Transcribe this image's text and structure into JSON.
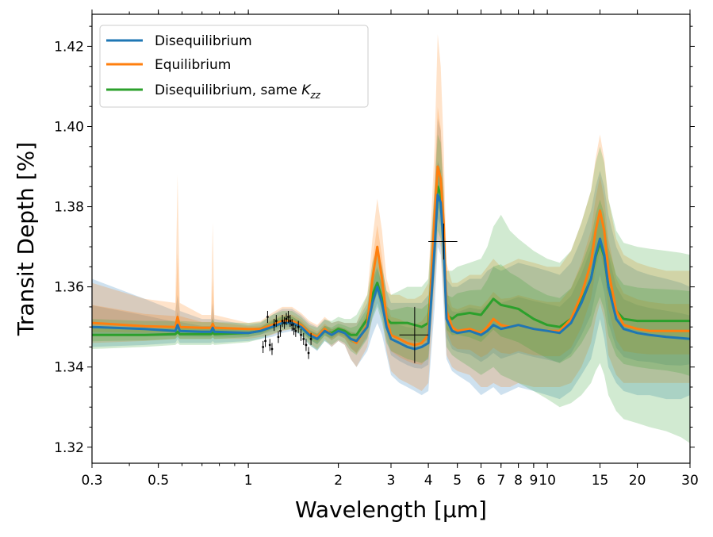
{
  "chart_data": {
    "type": "line",
    "title": "",
    "xlabel": "Wavelength [μm]",
    "ylabel": "Transit Depth [%]",
    "xscale": "log",
    "xlim": [
      0.3,
      30
    ],
    "ylim": [
      1.316,
      1.428
    ],
    "x_ticks": [
      {
        "value": 0.3,
        "label": "0.3"
      },
      {
        "value": 0.5,
        "label": "0.5"
      },
      {
        "value": 1,
        "label": "1"
      },
      {
        "value": 2,
        "label": "2"
      },
      {
        "value": 3,
        "label": "3"
      },
      {
        "value": 4,
        "label": "4"
      },
      {
        "value": 5,
        "label": "5"
      },
      {
        "value": 6,
        "label": "6"
      },
      {
        "value": 7,
        "label": "7"
      },
      {
        "value": 8,
        "label": "8"
      },
      {
        "value": 9,
        "label": "9"
      },
      {
        "value": 10,
        "label": "10"
      },
      {
        "value": 15,
        "label": "15"
      },
      {
        "value": 20,
        "label": "20"
      },
      {
        "value": 30,
        "label": "30"
      }
    ],
    "y_ticks": [
      {
        "value": 1.32,
        "label": "1.32"
      },
      {
        "value": 1.34,
        "label": "1.34"
      },
      {
        "value": 1.36,
        "label": "1.36"
      },
      {
        "value": 1.38,
        "label": "1.38"
      },
      {
        "value": 1.4,
        "label": "1.40"
      },
      {
        "value": 1.42,
        "label": "1.42"
      }
    ],
    "legend": {
      "placement": "top-left",
      "entries": [
        {
          "label": "Disequilibrium",
          "color": "#1f77b4"
        },
        {
          "label": "Equilibrium",
          "color": "#ff7f0e"
        },
        {
          "label_main": "Disequilibrium, same ",
          "label_symbol": "K",
          "label_sub": "zz",
          "color": "#2ca02c"
        }
      ]
    },
    "x": [
      0.3,
      0.45,
      0.57,
      0.58,
      0.59,
      0.7,
      0.75,
      0.76,
      0.77,
      1.0,
      1.1,
      1.2,
      1.3,
      1.4,
      1.5,
      1.6,
      1.7,
      1.8,
      1.9,
      2.0,
      2.1,
      2.2,
      2.3,
      2.5,
      2.6,
      2.7,
      2.8,
      2.9,
      3.0,
      3.2,
      3.4,
      3.6,
      3.8,
      4.0,
      4.2,
      4.3,
      4.4,
      4.5,
      4.6,
      4.8,
      5.0,
      5.5,
      6.0,
      6.3,
      6.6,
      7.0,
      7.5,
      8.0,
      9.0,
      10.0,
      11.0,
      12.0,
      13.0,
      14.0,
      14.5,
      15.0,
      15.5,
      16.0,
      17.0,
      18.0,
      20.0,
      22.0,
      25.0,
      28.0,
      30.0
    ],
    "series": [
      {
        "name": "Disequilibrium",
        "color": "#1f77b4",
        "values": [
          1.35,
          1.3495,
          1.349,
          1.3505,
          1.349,
          1.3488,
          1.3488,
          1.3498,
          1.3488,
          1.3485,
          1.349,
          1.35,
          1.351,
          1.351,
          1.35,
          1.348,
          1.347,
          1.349,
          1.348,
          1.349,
          1.3485,
          1.347,
          1.3465,
          1.35,
          1.356,
          1.36,
          1.356,
          1.35,
          1.347,
          1.346,
          1.345,
          1.3445,
          1.345,
          1.346,
          1.37,
          1.383,
          1.381,
          1.37,
          1.352,
          1.349,
          1.3485,
          1.349,
          1.348,
          1.349,
          1.3505,
          1.3495,
          1.35,
          1.3505,
          1.3495,
          1.349,
          1.3485,
          1.351,
          1.356,
          1.362,
          1.368,
          1.372,
          1.368,
          1.36,
          1.352,
          1.3495,
          1.3485,
          1.348,
          1.3475,
          1.3472,
          1.347
        ],
        "lower": [
          1.345,
          1.3455,
          1.346,
          1.347,
          1.346,
          1.346,
          1.346,
          1.3465,
          1.346,
          1.3465,
          1.347,
          1.3475,
          1.3485,
          1.349,
          1.348,
          1.3455,
          1.344,
          1.3465,
          1.345,
          1.3465,
          1.3455,
          1.342,
          1.34,
          1.344,
          1.348,
          1.351,
          1.348,
          1.343,
          1.338,
          1.336,
          1.335,
          1.334,
          1.333,
          1.334,
          1.355,
          1.37,
          1.368,
          1.355,
          1.342,
          1.339,
          1.338,
          1.336,
          1.333,
          1.334,
          1.335,
          1.333,
          1.334,
          1.335,
          1.334,
          1.333,
          1.332,
          1.334,
          1.338,
          1.342,
          1.347,
          1.352,
          1.347,
          1.34,
          1.336,
          1.334,
          1.333,
          1.333,
          1.332,
          1.332,
          1.333
        ],
        "upper": [
          1.362,
          1.357,
          1.354,
          1.358,
          1.354,
          1.352,
          1.352,
          1.356,
          1.352,
          1.3505,
          1.351,
          1.353,
          1.3545,
          1.3545,
          1.353,
          1.351,
          1.35,
          1.352,
          1.351,
          1.3515,
          1.351,
          1.351,
          1.351,
          1.356,
          1.364,
          1.37,
          1.365,
          1.359,
          1.356,
          1.356,
          1.356,
          1.356,
          1.356,
          1.358,
          1.385,
          1.402,
          1.399,
          1.382,
          1.362,
          1.36,
          1.36,
          1.362,
          1.362,
          1.364,
          1.365,
          1.364,
          1.365,
          1.366,
          1.365,
          1.364,
          1.363,
          1.366,
          1.372,
          1.379,
          1.385,
          1.389,
          1.385,
          1.378,
          1.37,
          1.366,
          1.364,
          1.363,
          1.362,
          1.361,
          1.36
        ]
      },
      {
        "name": "Equilibrium",
        "color": "#ff7f0e",
        "values": [
          1.351,
          1.3502,
          1.35,
          1.3525,
          1.35,
          1.3498,
          1.3498,
          1.3508,
          1.3498,
          1.3495,
          1.3495,
          1.3505,
          1.3515,
          1.3515,
          1.3505,
          1.3485,
          1.3475,
          1.3495,
          1.348,
          1.349,
          1.3485,
          1.347,
          1.346,
          1.3505,
          1.362,
          1.37,
          1.362,
          1.352,
          1.348,
          1.347,
          1.346,
          1.3455,
          1.346,
          1.348,
          1.378,
          1.39,
          1.387,
          1.376,
          1.354,
          1.35,
          1.349,
          1.3495,
          1.3485,
          1.35,
          1.352,
          1.3505,
          1.35,
          1.3505,
          1.3495,
          1.349,
          1.349,
          1.352,
          1.358,
          1.366,
          1.374,
          1.379,
          1.374,
          1.364,
          1.354,
          1.3505,
          1.3495,
          1.349,
          1.349,
          1.349,
          1.349
        ],
        "lower": [
          1.346,
          1.3465,
          1.347,
          1.348,
          1.347,
          1.347,
          1.347,
          1.3475,
          1.347,
          1.347,
          1.3475,
          1.348,
          1.349,
          1.3495,
          1.3485,
          1.346,
          1.3445,
          1.347,
          1.345,
          1.3465,
          1.3455,
          1.342,
          1.34,
          1.345,
          1.353,
          1.359,
          1.353,
          1.344,
          1.339,
          1.337,
          1.336,
          1.335,
          1.334,
          1.336,
          1.36,
          1.372,
          1.37,
          1.358,
          1.343,
          1.34,
          1.339,
          1.338,
          1.335,
          1.335,
          1.336,
          1.335,
          1.335,
          1.336,
          1.335,
          1.335,
          1.335,
          1.336,
          1.34,
          1.346,
          1.352,
          1.356,
          1.352,
          1.343,
          1.338,
          1.336,
          1.336,
          1.336,
          1.336,
          1.336,
          1.336
        ],
        "upper": [
          1.361,
          1.357,
          1.356,
          1.388,
          1.356,
          1.353,
          1.353,
          1.376,
          1.353,
          1.351,
          1.3515,
          1.3535,
          1.355,
          1.355,
          1.3535,
          1.3515,
          1.3505,
          1.3525,
          1.351,
          1.3515,
          1.351,
          1.351,
          1.351,
          1.358,
          1.372,
          1.382,
          1.374,
          1.362,
          1.358,
          1.358,
          1.357,
          1.357,
          1.358,
          1.361,
          1.396,
          1.423,
          1.415,
          1.395,
          1.366,
          1.361,
          1.361,
          1.363,
          1.363,
          1.365,
          1.367,
          1.365,
          1.366,
          1.367,
          1.366,
          1.365,
          1.365,
          1.369,
          1.376,
          1.384,
          1.392,
          1.398,
          1.392,
          1.382,
          1.372,
          1.368,
          1.366,
          1.365,
          1.364,
          1.364,
          1.364
        ]
      },
      {
        "name": "Disequilibrium, same K_zz",
        "color": "#2ca02c",
        "values": [
          1.348,
          1.348,
          1.3482,
          1.3488,
          1.3482,
          1.3482,
          1.3482,
          1.3486,
          1.3482,
          1.3485,
          1.349,
          1.3505,
          1.3515,
          1.3515,
          1.35,
          1.348,
          1.347,
          1.349,
          1.3485,
          1.3495,
          1.349,
          1.348,
          1.348,
          1.352,
          1.358,
          1.361,
          1.357,
          1.352,
          1.351,
          1.351,
          1.351,
          1.3505,
          1.35,
          1.351,
          1.374,
          1.385,
          1.383,
          1.372,
          1.353,
          1.352,
          1.353,
          1.3535,
          1.353,
          1.355,
          1.357,
          1.3555,
          1.355,
          1.3545,
          1.352,
          1.3505,
          1.35,
          1.352,
          1.3565,
          1.362,
          1.3675,
          1.371,
          1.3675,
          1.36,
          1.354,
          1.352,
          1.3515,
          1.3515,
          1.3515,
          1.3515,
          1.3515
        ],
        "lower": [
          1.3445,
          1.345,
          1.3455,
          1.346,
          1.3455,
          1.3455,
          1.3455,
          1.3458,
          1.3455,
          1.3462,
          1.347,
          1.3482,
          1.3492,
          1.3495,
          1.348,
          1.3455,
          1.3442,
          1.3465,
          1.3455,
          1.3468,
          1.346,
          1.344,
          1.343,
          1.347,
          1.352,
          1.355,
          1.351,
          1.346,
          1.344,
          1.343,
          1.342,
          1.3415,
          1.341,
          1.342,
          1.364,
          1.374,
          1.372,
          1.362,
          1.345,
          1.343,
          1.342,
          1.34,
          1.338,
          1.339,
          1.34,
          1.338,
          1.337,
          1.336,
          1.334,
          1.332,
          1.33,
          1.331,
          1.333,
          1.336,
          1.339,
          1.341,
          1.338,
          1.333,
          1.329,
          1.327,
          1.326,
          1.325,
          1.324,
          1.3225,
          1.321
        ],
        "upper": [
          1.352,
          1.3515,
          1.3515,
          1.3525,
          1.3515,
          1.3512,
          1.3512,
          1.352,
          1.3512,
          1.351,
          1.3512,
          1.353,
          1.354,
          1.354,
          1.3525,
          1.3505,
          1.3498,
          1.3518,
          1.3515,
          1.3525,
          1.352,
          1.352,
          1.353,
          1.358,
          1.366,
          1.37,
          1.365,
          1.359,
          1.358,
          1.359,
          1.36,
          1.36,
          1.36,
          1.362,
          1.385,
          1.398,
          1.396,
          1.384,
          1.364,
          1.364,
          1.365,
          1.366,
          1.367,
          1.37,
          1.375,
          1.378,
          1.374,
          1.372,
          1.369,
          1.367,
          1.366,
          1.369,
          1.376,
          1.384,
          1.391,
          1.395,
          1.391,
          1.382,
          1.374,
          1.371,
          1.37,
          1.3695,
          1.369,
          1.3685,
          1.368
        ]
      }
    ],
    "observations": [
      {
        "x": 1.12,
        "y": 1.345,
        "err": 0.0015
      },
      {
        "x": 1.14,
        "y": 1.3465,
        "err": 0.0015
      },
      {
        "x": 1.16,
        "y": 1.3525,
        "err": 0.0015
      },
      {
        "x": 1.18,
        "y": 1.3455,
        "err": 0.0015
      },
      {
        "x": 1.2,
        "y": 1.3445,
        "err": 0.0015
      },
      {
        "x": 1.22,
        "y": 1.3505,
        "err": 0.0015
      },
      {
        "x": 1.24,
        "y": 1.3515,
        "err": 0.0015
      },
      {
        "x": 1.26,
        "y": 1.3475,
        "err": 0.0015
      },
      {
        "x": 1.28,
        "y": 1.349,
        "err": 0.0015
      },
      {
        "x": 1.3,
        "y": 1.3515,
        "err": 0.0015
      },
      {
        "x": 1.32,
        "y": 1.351,
        "err": 0.0015
      },
      {
        "x": 1.34,
        "y": 1.352,
        "err": 0.0015
      },
      {
        "x": 1.36,
        "y": 1.3525,
        "err": 0.0015
      },
      {
        "x": 1.38,
        "y": 1.3515,
        "err": 0.0015
      },
      {
        "x": 1.4,
        "y": 1.3505,
        "err": 0.0015
      },
      {
        "x": 1.42,
        "y": 1.3495,
        "err": 0.0015
      },
      {
        "x": 1.44,
        "y": 1.349,
        "err": 0.0015
      },
      {
        "x": 1.47,
        "y": 1.35,
        "err": 0.0015
      },
      {
        "x": 1.5,
        "y": 1.348,
        "err": 0.0015
      },
      {
        "x": 1.53,
        "y": 1.347,
        "err": 0.0015
      },
      {
        "x": 1.56,
        "y": 1.3455,
        "err": 0.0015
      },
      {
        "x": 1.59,
        "y": 1.3435,
        "err": 0.0015
      },
      {
        "x": 1.62,
        "y": 1.347,
        "err": 0.0015
      },
      {
        "x": 3.6,
        "y": 1.348,
        "err": 0.007,
        "xerr": [
          3.2,
          4.0
        ]
      },
      {
        "x": 4.5,
        "y": 1.3713,
        "err": 0.0045,
        "xerr": [
          4.0,
          5.0
        ]
      }
    ]
  }
}
